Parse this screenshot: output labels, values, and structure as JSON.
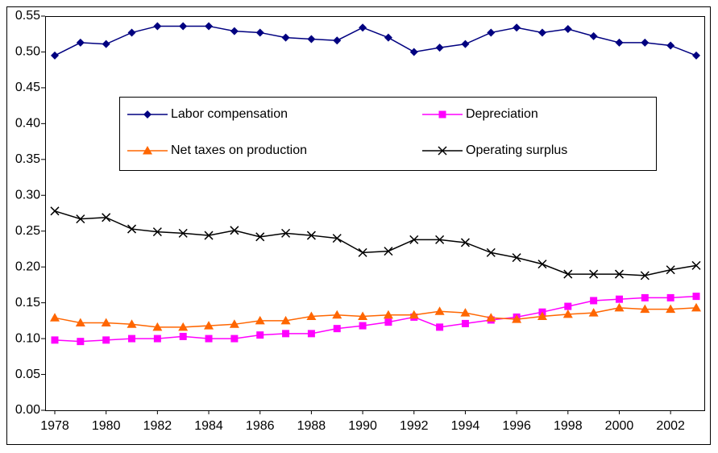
{
  "chart_data": {
    "type": "line",
    "x": [
      1978,
      1979,
      1980,
      1981,
      1982,
      1983,
      1984,
      1985,
      1986,
      1987,
      1988,
      1989,
      1990,
      1991,
      1992,
      1993,
      1994,
      1995,
      1996,
      1997,
      1998,
      1999,
      2000,
      2001,
      2002,
      2003
    ],
    "series": [
      {
        "name": "Labor compensation",
        "color": "#000080",
        "marker": "diamond",
        "values": [
          0.495,
          0.513,
          0.511,
          0.527,
          0.536,
          0.536,
          0.536,
          0.529,
          0.527,
          0.52,
          0.518,
          0.516,
          0.534,
          0.52,
          0.5,
          0.506,
          0.511,
          0.527,
          0.534,
          0.527,
          0.532,
          0.522,
          0.513,
          0.513,
          0.509,
          0.495
        ]
      },
      {
        "name": "Depreciation",
        "color": "#ff00ff",
        "marker": "square",
        "values": [
          0.098,
          0.096,
          0.098,
          0.1,
          0.1,
          0.103,
          0.1,
          0.1,
          0.105,
          0.107,
          0.107,
          0.114,
          0.118,
          0.123,
          0.13,
          0.116,
          0.121,
          0.126,
          0.13,
          0.137,
          0.145,
          0.153,
          0.155,
          0.157,
          0.157,
          0.159
        ]
      },
      {
        "name": "Net taxes on production",
        "color": "#ff6600",
        "marker": "triangle",
        "values": [
          0.129,
          0.122,
          0.122,
          0.12,
          0.116,
          0.116,
          0.118,
          0.12,
          0.125,
          0.125,
          0.131,
          0.133,
          0.131,
          0.133,
          0.133,
          0.138,
          0.136,
          0.129,
          0.127,
          0.131,
          0.134,
          0.136,
          0.143,
          0.141,
          0.141,
          0.143
        ]
      },
      {
        "name": "Operating surplus",
        "color": "#000000",
        "marker": "x",
        "values": [
          0.278,
          0.267,
          0.269,
          0.253,
          0.249,
          0.247,
          0.244,
          0.251,
          0.242,
          0.247,
          0.244,
          0.24,
          0.22,
          0.222,
          0.238,
          0.238,
          0.234,
          0.22,
          0.213,
          0.204,
          0.19,
          0.19,
          0.19,
          0.188,
          0.196,
          0.202
        ]
      }
    ],
    "xlim": [
      1978,
      2003
    ],
    "xticks": [
      1978,
      1980,
      1982,
      1984,
      1986,
      1988,
      1990,
      1992,
      1994,
      1996,
      1998,
      2000,
      2002
    ],
    "ylim": [
      0,
      0.55
    ],
    "yticks": [
      {
        "value": 0,
        "label": "0.00"
      },
      0.05,
      {
        "value": 0.1,
        "label": "0.10"
      },
      0.15,
      {
        "value": 0.2,
        "label": "0.20"
      },
      0.25,
      {
        "value": 0.3,
        "label": "0.30"
      },
      0.35,
      {
        "value": 0.4,
        "label": "0.40"
      },
      0.45,
      {
        "value": 0.5,
        "label": "0.50"
      },
      0.55
    ],
    "grid": false,
    "legend": "center"
  }
}
